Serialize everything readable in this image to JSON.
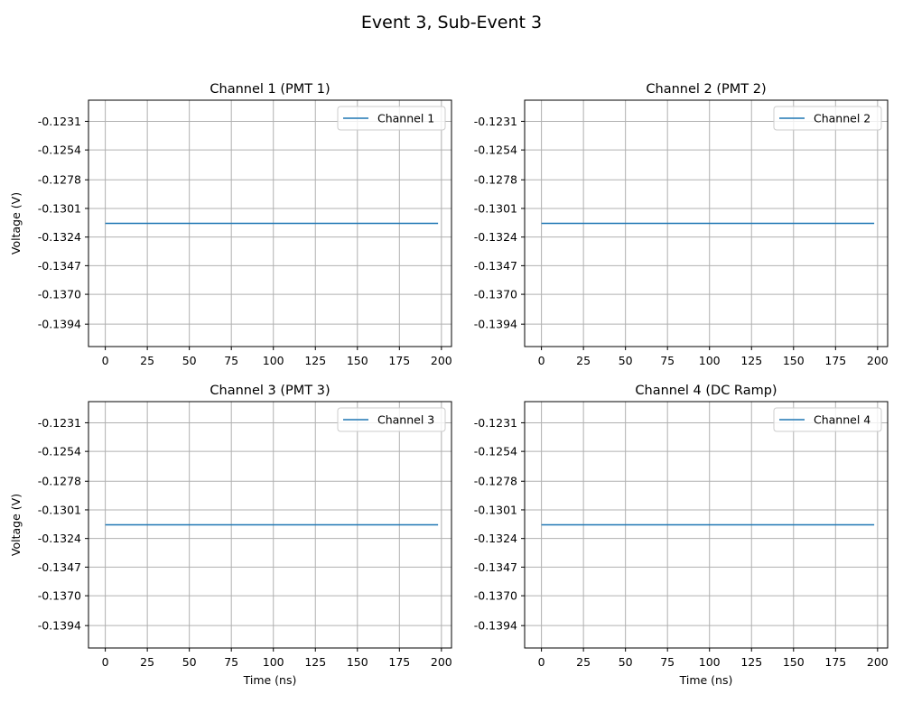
{
  "figure": {
    "title": "Event 3, Sub-Event 3"
  },
  "chart_data": [
    {
      "type": "line",
      "title": "Channel 1 (PMT 1)",
      "xlabel": "",
      "ylabel": "Voltage (V)",
      "xlim": [
        -10,
        206
      ],
      "ylim": [
        -0.1412,
        -0.1214
      ],
      "xticks": [
        0,
        25,
        50,
        75,
        100,
        125,
        150,
        175,
        200
      ],
      "xtick_labels": [
        "0",
        "25",
        "50",
        "75",
        "100",
        "125",
        "150",
        "175",
        "200"
      ],
      "yticks": [
        -0.1231,
        -0.1254,
        -0.1278,
        -0.1301,
        -0.1324,
        -0.1347,
        -0.137,
        -0.1394
      ],
      "ytick_labels": [
        "-0.1231",
        "-0.1254",
        "-0.1278",
        "-0.1301",
        "-0.1324",
        "-0.1347",
        "-0.1370",
        "-0.1394"
      ],
      "grid": true,
      "legend": "top-right",
      "series": [
        {
          "name": "Channel 1",
          "color": "#1f77b4",
          "x": [
            0,
            198
          ],
          "y": [
            -0.1313,
            -0.1313
          ]
        }
      ]
    },
    {
      "type": "line",
      "title": "Channel 2 (PMT 2)",
      "xlabel": "",
      "ylabel": "",
      "xlim": [
        -10,
        206
      ],
      "ylim": [
        -0.1412,
        -0.1214
      ],
      "xticks": [
        0,
        25,
        50,
        75,
        100,
        125,
        150,
        175,
        200
      ],
      "xtick_labels": [
        "0",
        "25",
        "50",
        "75",
        "100",
        "125",
        "150",
        "175",
        "200"
      ],
      "yticks": [
        -0.1231,
        -0.1254,
        -0.1278,
        -0.1301,
        -0.1324,
        -0.1347,
        -0.137,
        -0.1394
      ],
      "ytick_labels": [
        "-0.1231",
        "-0.1254",
        "-0.1278",
        "-0.1301",
        "-0.1324",
        "-0.1347",
        "-0.1370",
        "-0.1394"
      ],
      "grid": true,
      "legend": "top-right",
      "series": [
        {
          "name": "Channel 2",
          "color": "#1f77b4",
          "x": [
            0,
            198
          ],
          "y": [
            -0.1313,
            -0.1313
          ]
        }
      ]
    },
    {
      "type": "line",
      "title": "Channel 3 (PMT 3)",
      "xlabel": "Time (ns)",
      "ylabel": "Voltage (V)",
      "xlim": [
        -10,
        206
      ],
      "ylim": [
        -0.1412,
        -0.1214
      ],
      "xticks": [
        0,
        25,
        50,
        75,
        100,
        125,
        150,
        175,
        200
      ],
      "xtick_labels": [
        "0",
        "25",
        "50",
        "75",
        "100",
        "125",
        "150",
        "175",
        "200"
      ],
      "yticks": [
        -0.1231,
        -0.1254,
        -0.1278,
        -0.1301,
        -0.1324,
        -0.1347,
        -0.137,
        -0.1394
      ],
      "ytick_labels": [
        "-0.1231",
        "-0.1254",
        "-0.1278",
        "-0.1301",
        "-0.1324",
        "-0.1347",
        "-0.1370",
        "-0.1394"
      ],
      "grid": true,
      "legend": "top-right",
      "series": [
        {
          "name": "Channel 3",
          "color": "#1f77b4",
          "x": [
            0,
            198
          ],
          "y": [
            -0.1313,
            -0.1313
          ]
        }
      ]
    },
    {
      "type": "line",
      "title": "Channel 4 (DC Ramp)",
      "xlabel": "Time (ns)",
      "ylabel": "",
      "xlim": [
        -10,
        206
      ],
      "ylim": [
        -0.1412,
        -0.1214
      ],
      "xticks": [
        0,
        25,
        50,
        75,
        100,
        125,
        150,
        175,
        200
      ],
      "xtick_labels": [
        "0",
        "25",
        "50",
        "75",
        "100",
        "125",
        "150",
        "175",
        "200"
      ],
      "yticks": [
        -0.1231,
        -0.1254,
        -0.1278,
        -0.1301,
        -0.1324,
        -0.1347,
        -0.137,
        -0.1394
      ],
      "ytick_labels": [
        "-0.1231",
        "-0.1254",
        "-0.1278",
        "-0.1301",
        "-0.1324",
        "-0.1347",
        "-0.1370",
        "-0.1394"
      ],
      "grid": true,
      "legend": "top-right",
      "series": [
        {
          "name": "Channel 4",
          "color": "#1f77b4",
          "x": [
            0,
            198
          ],
          "y": [
            -0.1313,
            -0.1313
          ]
        }
      ]
    }
  ]
}
